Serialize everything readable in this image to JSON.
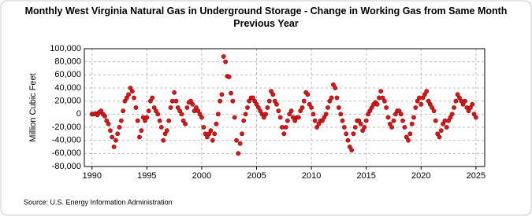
{
  "chart_data": {
    "type": "scatter",
    "title": "Monthly West Virginia Natural Gas in Underground Storage - Change in Working Gas from Same Month Previous Year",
    "y_label": "Million Cubic Feet",
    "source": "Source: U.S. Energy Information Administration",
    "color": "#d7191c",
    "grid": true,
    "xlim": [
      1989.3,
      2025.8
    ],
    "xticks": [
      1990,
      1995,
      2000,
      2005,
      2010,
      2015,
      2020,
      2025
    ],
    "ylim": [
      -80000,
      100000
    ],
    "yticks": [
      {
        "value": -80000,
        "label": "-80,000"
      },
      {
        "value": -60000,
        "label": "-60,000"
      },
      {
        "value": -40000,
        "label": "-40,000"
      },
      {
        "value": -20000,
        "label": "-20,000"
      },
      0,
      {
        "value": 20000,
        "label": "20,000"
      },
      {
        "value": 40000,
        "label": "40,000"
      },
      {
        "value": 60000,
        "label": "60,000"
      },
      {
        "value": 80000,
        "label": "80,000"
      },
      {
        "value": 100000,
        "label": "100,000"
      }
    ],
    "x": [
      1990,
      1990.17,
      1990.33,
      1990.5,
      1990.67,
      1990.83,
      1991,
      1991.17,
      1991.33,
      1991.5,
      1991.67,
      1991.83,
      1992,
      1992.17,
      1992.33,
      1992.5,
      1992.67,
      1992.83,
      1993,
      1993.17,
      1993.33,
      1993.5,
      1993.67,
      1993.83,
      1994,
      1994.17,
      1994.33,
      1994.5,
      1994.67,
      1994.83,
      1995,
      1995.17,
      1995.33,
      1995.5,
      1995.67,
      1995.83,
      1996,
      1996.17,
      1996.33,
      1996.5,
      1996.67,
      1996.83,
      1997,
      1997.17,
      1997.33,
      1997.5,
      1997.67,
      1997.83,
      1998,
      1998.17,
      1998.33,
      1998.5,
      1998.67,
      1998.83,
      1999,
      1999.17,
      1999.33,
      1999.5,
      1999.67,
      1999.83,
      2000,
      2000.17,
      2000.33,
      2000.5,
      2000.67,
      2000.83,
      2001,
      2001.17,
      2001.33,
      2001.5,
      2001.67,
      2001.83,
      2002,
      2002.17,
      2002.33,
      2002.5,
      2002.67,
      2002.83,
      2003,
      2003.17,
      2003.33,
      2003.5,
      2003.67,
      2003.83,
      2004,
      2004.17,
      2004.33,
      2004.5,
      2004.67,
      2004.83,
      2005,
      2005.17,
      2005.33,
      2005.5,
      2005.67,
      2005.83,
      2006,
      2006.17,
      2006.33,
      2006.5,
      2006.67,
      2006.83,
      2007,
      2007.17,
      2007.33,
      2007.5,
      2007.67,
      2007.83,
      2008,
      2008.17,
      2008.33,
      2008.5,
      2008.67,
      2008.83,
      2009,
      2009.17,
      2009.33,
      2009.5,
      2009.67,
      2009.83,
      2010,
      2010.17,
      2010.33,
      2010.5,
      2010.67,
      2010.83,
      2011,
      2011.17,
      2011.33,
      2011.5,
      2011.67,
      2011.83,
      2012,
      2012.17,
      2012.33,
      2012.5,
      2012.67,
      2012.83,
      2013,
      2013.17,
      2013.33,
      2013.5,
      2013.67,
      2013.83,
      2014,
      2014.17,
      2014.33,
      2014.5,
      2014.67,
      2014.83,
      2015,
      2015.17,
      2015.33,
      2015.5,
      2015.67,
      2015.83,
      2016,
      2016.17,
      2016.33,
      2016.5,
      2016.67,
      2016.83,
      2017,
      2017.17,
      2017.33,
      2017.5,
      2017.67,
      2017.83,
      2018,
      2018.17,
      2018.33,
      2018.5,
      2018.67,
      2018.83,
      2019,
      2019.17,
      2019.33,
      2019.5,
      2019.67,
      2019.83,
      2020,
      2020.17,
      2020.33,
      2020.5,
      2020.67,
      2020.83,
      2021,
      2021.17,
      2021.33,
      2021.5,
      2021.67,
      2021.83,
      2022,
      2022.17,
      2022.33,
      2022.5,
      2022.67,
      2022.83,
      2023,
      2023.17,
      2023.33,
      2023.5,
      2023.67,
      2023.83,
      2024,
      2024.17,
      2024.33,
      2024.5,
      2024.67,
      2024.83,
      2025
    ],
    "values": [
      0,
      0,
      1000,
      -1000,
      3000,
      5000,
      0,
      -3000,
      -10000,
      -15000,
      -25000,
      -35000,
      -50000,
      -40000,
      -30000,
      -20000,
      -10000,
      5000,
      20000,
      25000,
      30000,
      40000,
      35000,
      25000,
      10000,
      -10000,
      -35000,
      -25000,
      -5000,
      -10000,
      -5000,
      5000,
      20000,
      25000,
      10000,
      5000,
      0,
      -10000,
      -20000,
      -40000,
      -30000,
      -25000,
      -10000,
      10000,
      20000,
      33000,
      20000,
      10000,
      5000,
      0,
      -10000,
      -15000,
      10000,
      18000,
      20000,
      15000,
      5000,
      10000,
      5000,
      0,
      -5000,
      -20000,
      -30000,
      -35000,
      -30000,
      -25000,
      -40000,
      -30000,
      -15000,
      0,
      20000,
      30000,
      88000,
      80000,
      58000,
      57000,
      32000,
      20000,
      -5000,
      -40000,
      -60000,
      -45000,
      -30000,
      -10000,
      0,
      10000,
      20000,
      25000,
      25000,
      20000,
      15000,
      10000,
      5000,
      0,
      -5000,
      0,
      10000,
      20000,
      35000,
      30000,
      20000,
      15000,
      5000,
      -5000,
      -20000,
      -30000,
      -20000,
      -10000,
      0,
      5000,
      -5000,
      -10000,
      -5000,
      -5000,
      5000,
      10000,
      20000,
      33000,
      30000,
      15000,
      10000,
      0,
      -10000,
      -20000,
      -15000,
      -10000,
      -10000,
      -5000,
      0,
      10000,
      20000,
      25000,
      45000,
      40000,
      25000,
      10000,
      0,
      -10000,
      -20000,
      -30000,
      -40000,
      -50000,
      -55000,
      -30000,
      -20000,
      -10000,
      -10000,
      -15000,
      -25000,
      -20000,
      -10000,
      0,
      5000,
      10000,
      15000,
      18000,
      15000,
      25000,
      35000,
      25000,
      20000,
      10000,
      -5000,
      -15000,
      -20000,
      -10000,
      0,
      5000,
      5000,
      0,
      -10000,
      -20000,
      -35000,
      -40000,
      -30000,
      -15000,
      -5000,
      10000,
      20000,
      25000,
      15000,
      25000,
      30000,
      35000,
      20000,
      15000,
      10000,
      5000,
      -10000,
      -30000,
      -35000,
      -25000,
      -15000,
      -10000,
      -20000,
      -10000,
      -5000,
      0,
      10000,
      20000,
      30000,
      25000,
      20000,
      15000,
      20000,
      10000,
      5000,
      10000,
      15000,
      0,
      -5000
    ]
  }
}
